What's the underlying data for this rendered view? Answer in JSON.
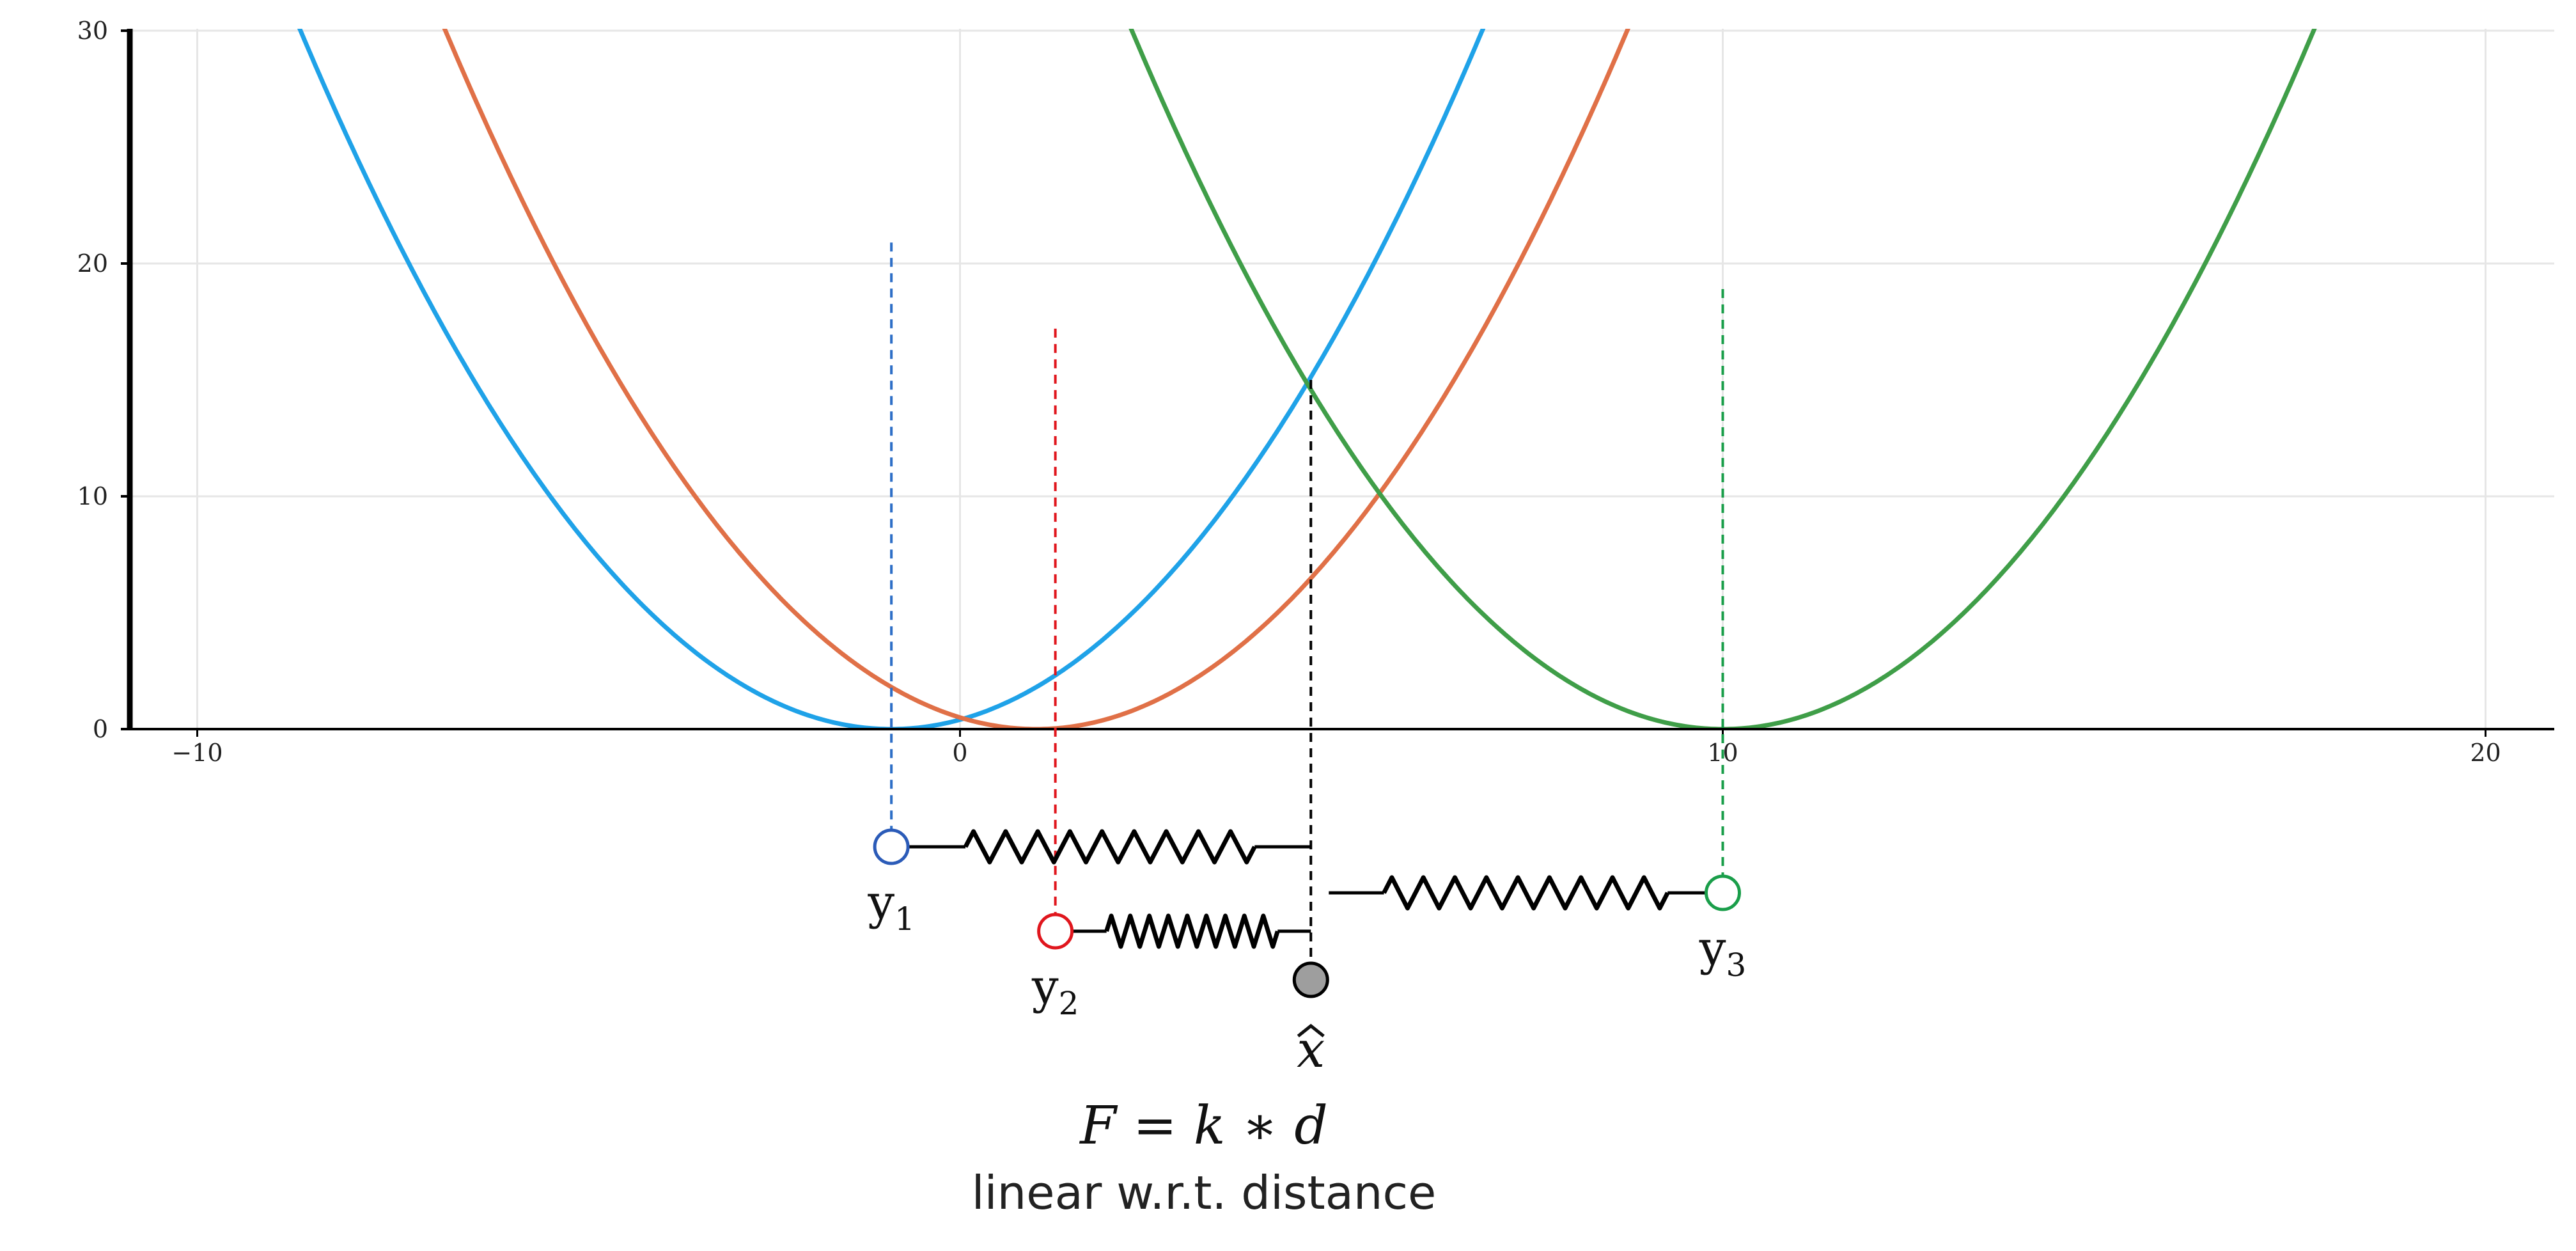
{
  "chart_data": {
    "type": "line",
    "xlim": [
      -10,
      20
    ],
    "ylim": [
      0,
      30
    ],
    "grid": true,
    "x_ticks": [
      -10,
      0,
      10,
      20
    ],
    "x_tick_labels": [
      "−10",
      "0",
      "10",
      "20"
    ],
    "y_ticks": [
      0,
      10,
      20,
      30
    ],
    "y_tick_labels": [
      "0",
      "10",
      "20",
      "30"
    ],
    "series": [
      {
        "color": "#1fa2e8",
        "center": -0.9,
        "coef": 0.5
      },
      {
        "color": "#e07047",
        "center": 1.0,
        "coef": 0.5
      },
      {
        "color": "#3f9e48",
        "center": 10.0,
        "coef": 0.5
      }
    ],
    "observations": [
      {
        "label": "y",
        "sub": "1",
        "x": -0.9,
        "line_top": 20.9,
        "color": "#2b5bb8",
        "dash_color": "#2e6fc7",
        "row": 0
      },
      {
        "label": "y",
        "sub": "2",
        "x": 1.25,
        "line_top": 17.2,
        "color": "#e0161d",
        "dash_color": "#e0161d",
        "row": 1
      },
      {
        "label": "y",
        "sub": "3",
        "x": 10.0,
        "line_top": 18.9,
        "color": "#1a9e4a",
        "dash_color": "#1a9e4a",
        "row": 2
      }
    ],
    "estimate": {
      "label": "x",
      "x": 4.6,
      "line_top": 15.0,
      "fill": "#9e9e9e"
    }
  },
  "formula": "F = k ∗ d",
  "caption": "linear w.r.t. distance"
}
